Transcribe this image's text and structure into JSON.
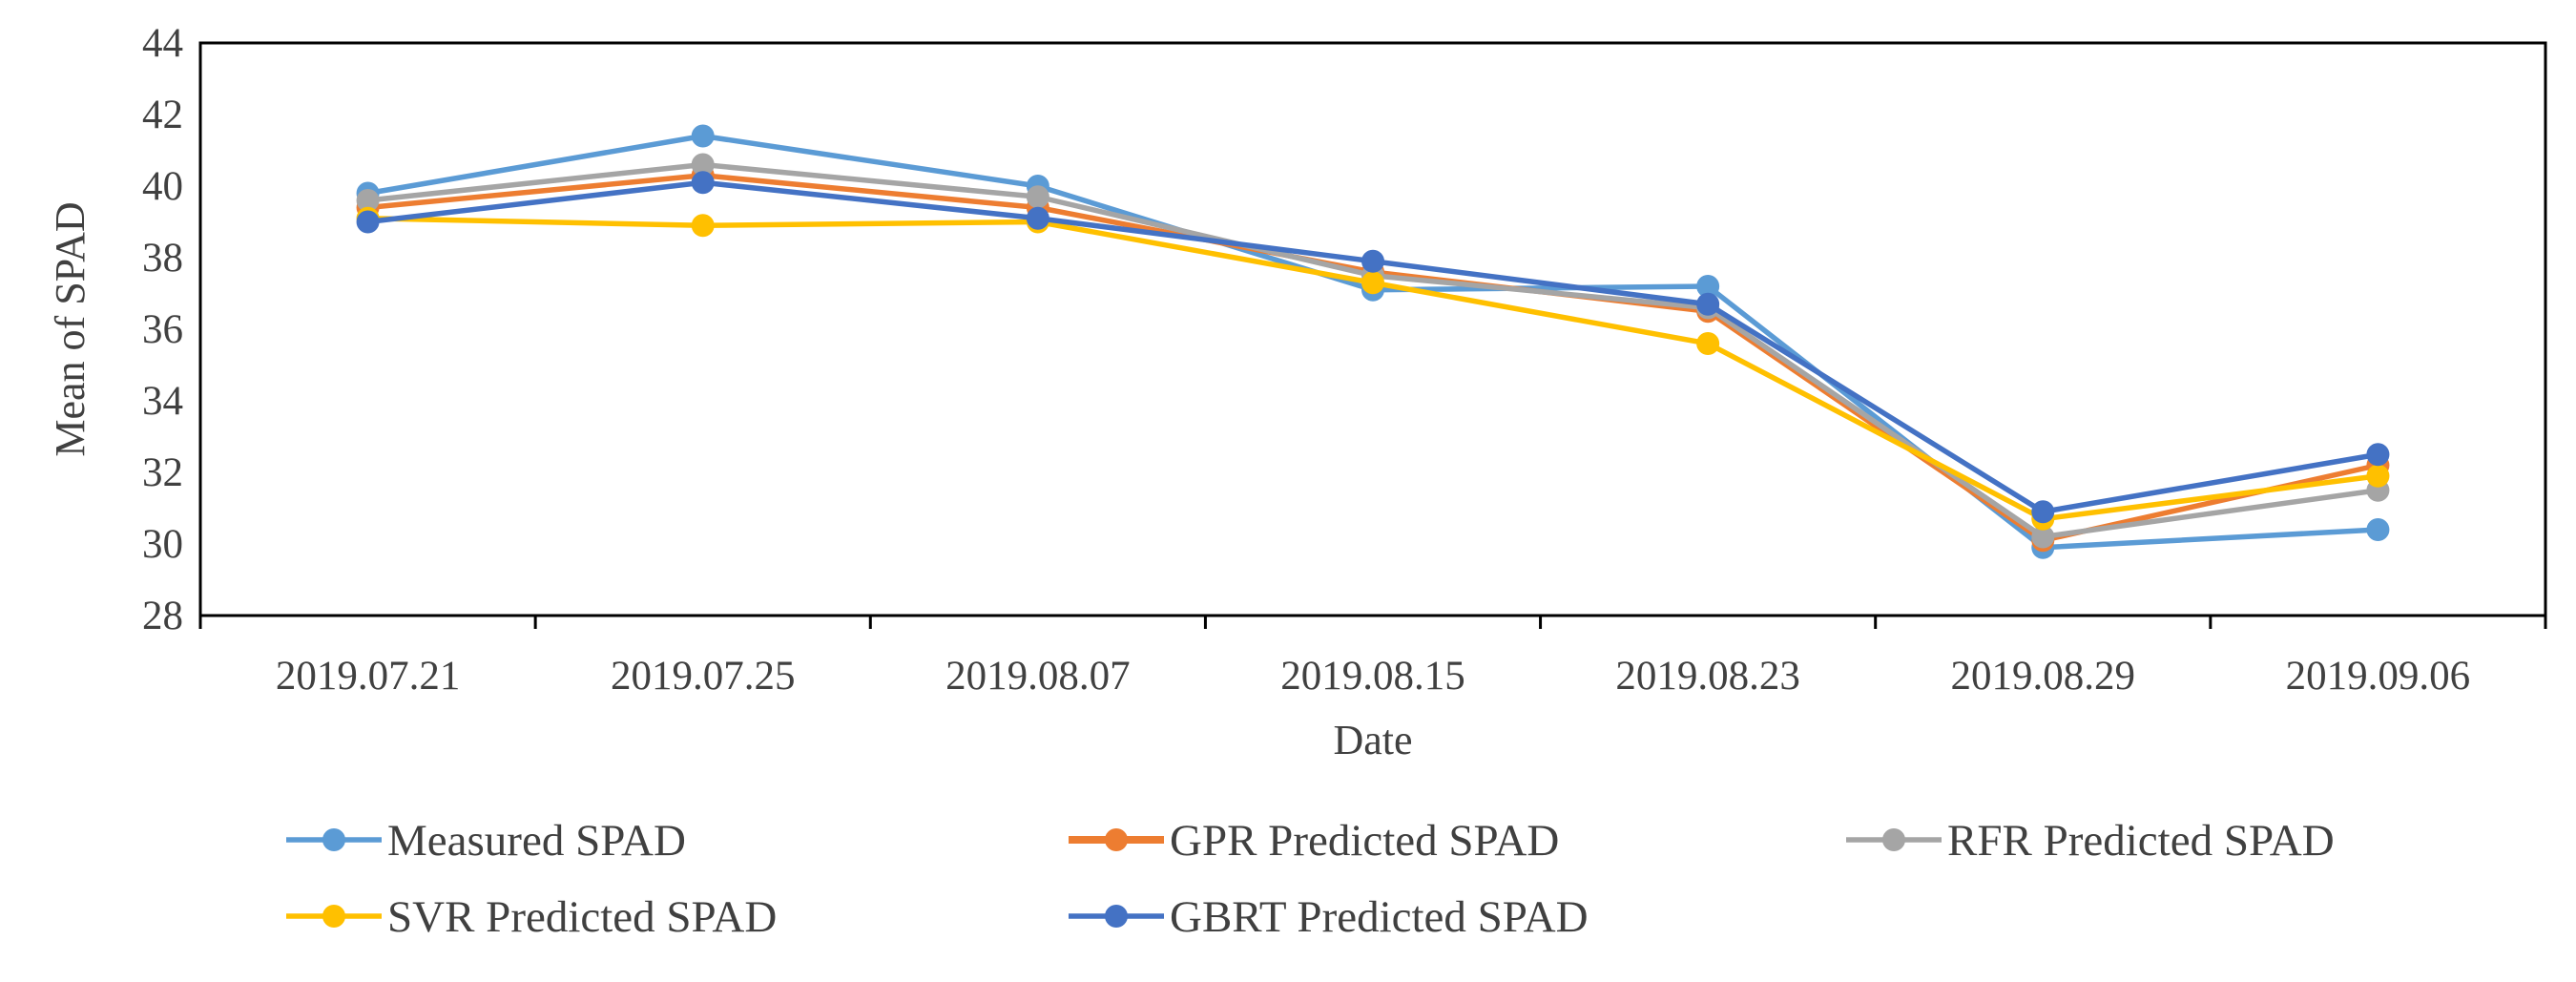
{
  "chart_data": {
    "type": "line",
    "title": "",
    "xlabel": "Date",
    "ylabel": "Mean of SPAD",
    "ylim": [
      28,
      44
    ],
    "ytick_step": 2,
    "yticks": [
      "28",
      "30",
      "32",
      "34",
      "36",
      "38",
      "40",
      "42",
      "44"
    ],
    "grid": false,
    "legend_position": "bottom",
    "categories": [
      "2019.07.21",
      "2019.07.25",
      "2019.08.07",
      "2019.08.15",
      "2019.08.23",
      "2019.08.29",
      "2019.09.06"
    ],
    "series": [
      {
        "name": "Measured SPAD",
        "color": "#5B9BD5",
        "values": [
          39.8,
          41.4,
          40.0,
          37.1,
          37.2,
          29.9,
          30.4
        ]
      },
      {
        "name": "GPR Predicted SPAD",
        "color": "#ED7D31",
        "values": [
          39.4,
          40.3,
          39.4,
          37.6,
          36.5,
          30.1,
          32.2
        ]
      },
      {
        "name": "RFR Predicted SPAD",
        "color": "#A5A5A5",
        "values": [
          39.6,
          40.6,
          39.7,
          37.5,
          36.6,
          30.2,
          31.5
        ]
      },
      {
        "name": "SVR Predicted SPAD",
        "color": "#FFC000",
        "values": [
          39.1,
          38.9,
          39.0,
          37.3,
          35.6,
          30.7,
          31.9
        ]
      },
      {
        "name": "GBRT Predicted SPAD",
        "color": "#4472C4",
        "values": [
          39.0,
          40.1,
          39.1,
          37.9,
          36.7,
          30.9,
          32.5
        ]
      }
    ]
  }
}
